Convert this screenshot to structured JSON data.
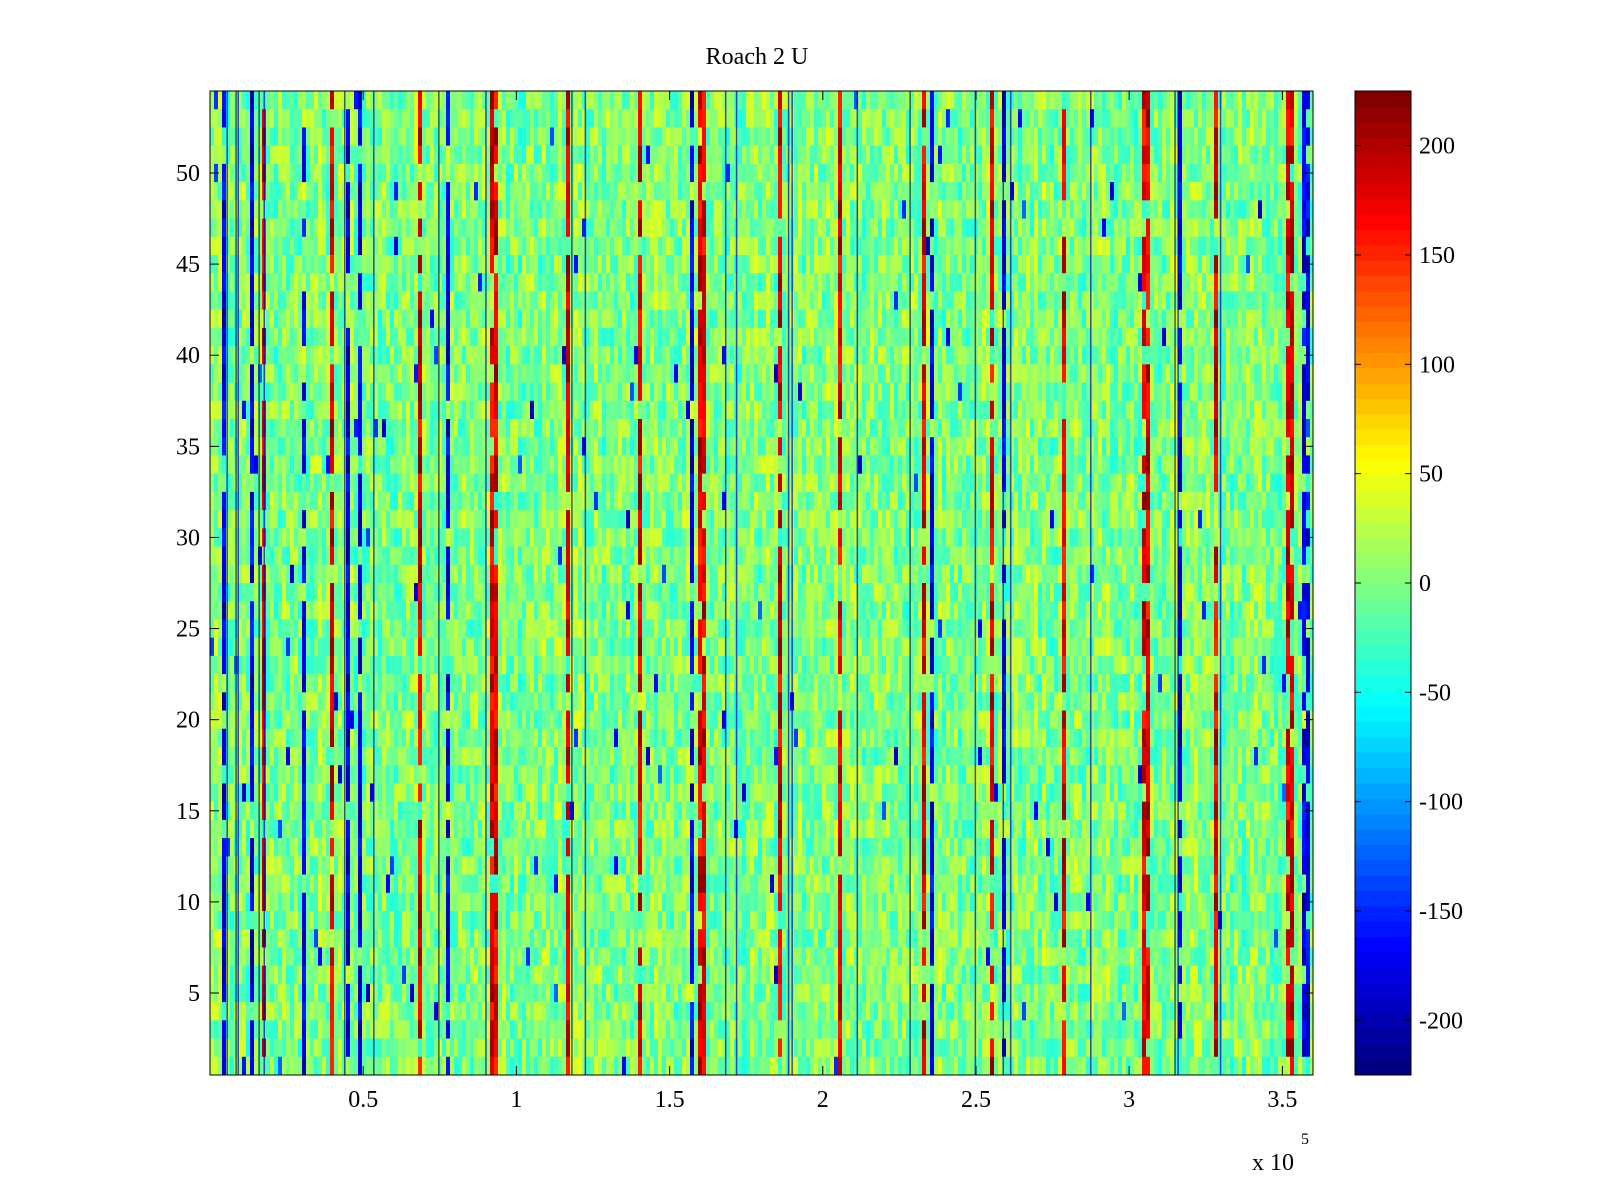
{
  "chart_data": {
    "type": "heatmap",
    "title": "Roach 2 U",
    "xlabel": "",
    "ylabel": "",
    "x_multiplier_label": "x 10",
    "x_multiplier_exponent": "5",
    "xlim": [
      0,
      3.6
    ],
    "ylim": [
      0.5,
      54.5
    ],
    "x_ticks": [
      0.5,
      1,
      1.5,
      2,
      2.5,
      3,
      3.5
    ],
    "x_tick_labels": [
      "0.5",
      "1",
      "1.5",
      "2",
      "2.5",
      "3",
      "3.5"
    ],
    "y_ticks": [
      5,
      10,
      15,
      20,
      25,
      30,
      35,
      40,
      45,
      50
    ],
    "y_tick_labels": [
      "5",
      "10",
      "15",
      "20",
      "25",
      "30",
      "35",
      "40",
      "45",
      "50"
    ],
    "rows": 54,
    "colorbar": {
      "colormap": "jet",
      "clim": [
        -225,
        225
      ],
      "ticks": [
        -200,
        -150,
        -100,
        -50,
        0,
        50,
        100,
        150,
        200
      ],
      "tick_labels": [
        "-200",
        "-150",
        "-100",
        "-50",
        "0",
        "50",
        "100",
        "150",
        "200"
      ]
    },
    "dominant_value_range": [
      -40,
      40
    ],
    "spike_positions_x": [
      0.17,
      0.39,
      0.68,
      0.92,
      1.16,
      1.4,
      1.6,
      1.85,
      2.05,
      2.32,
      2.55,
      2.78,
      3.05,
      3.28,
      3.52
    ],
    "grid": false,
    "legend": "none"
  }
}
